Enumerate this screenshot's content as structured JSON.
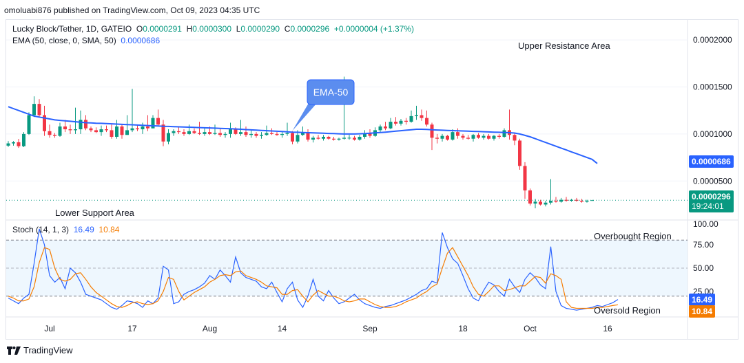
{
  "caption": "omoluabi876 published on TradingView.com, Oct 09, 2023 04:35 UTC",
  "legend": {
    "symbol": "Lucky Block/Tether, 1D, GATEIO",
    "o_label": "O",
    "o_val": "0.0000291",
    "h_label": "H",
    "h_val": "0.0000300",
    "l_label": "L",
    "l_val": "0.0000290",
    "c_label": "C",
    "c_val": "0.0000296",
    "change": "+0.0000004 (+1.37%)",
    "ema_label": "EMA (50, close, 0, SMA, 50)",
    "ema_val": "0.0000686"
  },
  "stoch_legend": {
    "label": "Stoch (14, 1, 3)",
    "k_val": "16.49",
    "d_val": "10.84"
  },
  "badges": {
    "ema": "0.0000686",
    "price": "0.0000296",
    "countdown": "19:24:01",
    "k": "16.49",
    "d": "10.84"
  },
  "footer": {
    "brand": "TradingView"
  },
  "colors": {
    "up": "#089981",
    "down": "#f23645",
    "ema": "#2962ff",
    "stoch_k": "#2962ff",
    "stoch_d": "#f57c00",
    "band": "#e3f2fd"
  },
  "chart_data": [
    {
      "type": "candlestick",
      "title": "Lucky Block/Tether, 1D, GATEIO",
      "y_ticks": [
        "0.0000500",
        "0.0001000",
        "0.0001500",
        "0.0002000"
      ],
      "y_tick_values": [
        5e-05,
        0.0001,
        0.00015,
        0.0002
      ],
      "ylim": [
        1e-05,
        0.000222
      ],
      "x_ticks": [
        "Jul",
        "17",
        "Aug",
        "14",
        "Sep",
        "18",
        "Oct",
        "16"
      ],
      "x_tick_days": [
        8,
        24,
        39,
        53,
        70,
        88,
        101,
        116
      ],
      "annotations": [
        "Upper Resistance Area",
        "Lower Support Area",
        "EMA-50"
      ],
      "ohlc": [
        [
          8.76e-05,
          9.24e-05,
          8.62e-05,
          9e-05
        ],
        [
          9e-05,
          9.24e-05,
          8.76e-05,
          9.12e-05
        ],
        [
          9.12e-05,
          9.48e-05,
          8.52e-05,
          8.7e-05
        ],
        [
          8.7e-05,
          0.000102,
          8.6e-05,
          0.0001
        ],
        [
          0.0001,
          0.000123,
          9.9e-05,
          0.00012
        ],
        [
          0.00012,
          0.00014,
          0.000118,
          0.000132
        ],
        [
          0.000132,
          0.000137,
          0.000118,
          0.00012
        ],
        [
          0.00012,
          0.00013,
          9.8e-05,
          0.000103
        ],
        [
          0.000103,
          0.00011,
          9.6e-05,
          9.9e-05
        ],
        [
          9.9e-05,
          0.000101,
          9.6e-05,
          9.8e-05
        ],
        [
          9.8e-05,
          0.000112,
          9.7e-05,
          0.000108
        ],
        [
          0.000108,
          0.000115,
          0.000102,
          0.000105
        ],
        [
          0.000105,
          0.00011,
          0.0001,
          0.000104
        ],
        [
          0.000104,
          0.000128,
          0.0001,
          0.000105
        ],
        [
          0.000105,
          0.000125,
          0.0001,
          0.000115
        ],
        [
          0.000115,
          0.00012,
          0.000104,
          0.000106
        ],
        [
          0.000106,
          0.000108,
          0.000102,
          0.000104
        ],
        [
          0.000104,
          0.000107,
          0.000101,
          0.000102
        ],
        [
          0.000102,
          0.000109,
          9.8e-05,
          0.000105
        ],
        [
          0.000105,
          0.000109,
          0.000102,
          0.000104
        ],
        [
          0.000104,
          0.00011,
          9.5e-05,
          9.7e-05
        ],
        [
          9.7e-05,
          0.000115,
          9.5e-05,
          0.000108
        ],
        [
          0.000108,
          0.00011,
          9.5e-05,
          9.9e-05
        ],
        [
          9.9e-05,
          0.00012,
          9.9e-05,
          0.000104
        ],
        [
          0.000104,
          0.000148,
          0.000102,
          0.000106
        ],
        [
          0.000106,
          0.00011,
          0.000103,
          0.000105
        ],
        [
          0.000105,
          0.000112,
          0.0001,
          0.000108
        ],
        [
          0.000108,
          0.00012,
          0.000103,
          0.000106
        ],
        [
          0.000106,
          0.00012,
          0.000106,
          0.000117
        ],
        [
          0.000117,
          0.000126,
          0.000108,
          0.00011
        ],
        [
          0.00011,
          0.000115,
          8.7e-05,
          9.2e-05
        ],
        [
          9.2e-05,
          0.000105,
          8.9e-05,
          0.000101
        ],
        [
          0.000101,
          0.000105,
          9.8e-05,
          0.000103
        ],
        [
          0.000103,
          0.000108,
          0.0001,
          0.000102
        ],
        [
          0.000102,
          0.000105,
          9.8e-05,
          0.0001
        ],
        [
          0.0001,
          0.00011,
          9.9e-05,
          0.000103
        ],
        [
          0.000103,
          0.000106,
          0.0001,
          0.000101
        ],
        [
          0.000101,
          0.000113,
          9.9e-05,
          0.0001
        ],
        [
          0.0001,
          0.000106,
          9.8e-05,
          0.000102
        ],
        [
          0.000102,
          0.000108,
          9.9e-05,
          0.0001
        ],
        [
          0.0001,
          0.00011,
          9.9e-05,
          0.000101
        ],
        [
          0.000101,
          0.000106,
          9.7e-05,
          9.9e-05
        ],
        [
          9.9e-05,
          0.000102,
          9.6e-05,
          0.0001
        ],
        [
          0.0001,
          0.000112,
          9.6e-05,
          0.000105
        ],
        [
          0.000105,
          0.000107,
          9.9e-05,
          0.0001
        ],
        [
          0.0001,
          0.000115,
          9.8e-05,
          0.000102
        ],
        [
          0.000102,
          0.000108,
          9.7e-05,
          9.9e-05
        ],
        [
          9.9e-05,
          0.000104,
          9.6e-05,
          0.0001
        ],
        [
          0.0001,
          0.000102,
          9.6e-05,
          9.8e-05
        ],
        [
          9.8e-05,
          0.000102,
          9.5e-05,
          9.9e-05
        ],
        [
          9.9e-05,
          0.000109,
          9.8e-05,
          0.000101
        ],
        [
          0.000101,
          0.000106,
          9.9e-05,
          0.0001
        ],
        [
          0.0001,
          0.000102,
          9.8e-05,
          9.9e-05
        ],
        [
          9.9e-05,
          0.000103,
          9.6e-05,
          0.0001
        ],
        [
          0.0001,
          0.000112,
          9.8e-05,
          0.000101
        ],
        [
          0.000101,
          0.000103,
          8.9e-05,
          9.2e-05
        ],
        [
          9.2e-05,
          0.000104,
          9e-05,
          9.9e-05
        ],
        [
          9.9e-05,
          0.000108,
          9.8e-05,
          0.000102
        ],
        [
          0.000102,
          0.000105,
          9.2e-05,
          9.4e-05
        ],
        [
          9.4e-05,
          9.8e-05,
          9.1e-05,
          9.6e-05
        ],
        [
          9.6e-05,
          9.9e-05,
          9.4e-05,
          9.5e-05
        ],
        [
          9.5e-05,
          9.9e-05,
          9.3e-05,
          9.7e-05
        ],
        [
          9.7e-05,
          9.8e-05,
          9.4e-05,
          9.5e-05
        ],
        [
          9.5e-05,
          9.7e-05,
          9.3e-05,
          9.4e-05
        ],
        [
          9.4e-05,
          9.6e-05,
          9.3e-05,
          9.5e-05
        ],
        [
          9.5e-05,
          0.000161,
          9.4e-05,
          9.6e-05
        ],
        [
          9.6e-05,
          9.9e-05,
          9.4e-05,
          9.6e-05
        ],
        [
          9.6e-05,
          9.8e-05,
          9.3e-05,
          9.4e-05
        ],
        [
          9.4e-05,
          9.9e-05,
          9.3e-05,
          9.7e-05
        ],
        [
          9.7e-05,
          0.000104,
          9.5e-05,
          0.000101
        ],
        [
          0.000101,
          0.000105,
          9.6e-05,
          9.8e-05
        ],
        [
          9.8e-05,
          0.000107,
          9.7e-05,
          0.000104
        ],
        [
          0.000104,
          0.00011,
          0.000102,
          0.000108
        ],
        [
          0.000108,
          0.000113,
          0.000104,
          0.000106
        ],
        [
          0.000106,
          0.000117,
          0.000105,
          0.000113
        ],
        [
          0.000113,
          0.000118,
          0.000109,
          0.000111
        ],
        [
          0.000111,
          0.000116,
          0.000109,
          0.000114
        ],
        [
          0.000114,
          0.000117,
          0.00011,
          0.000113
        ],
        [
          0.000113,
          0.000125,
          0.000112,
          0.000119
        ],
        [
          0.000119,
          0.00013,
          0.000115,
          0.00012
        ],
        [
          0.00012,
          0.000126,
          0.000114,
          0.000117
        ],
        [
          0.000117,
          0.000125,
          0.000108,
          0.00011
        ],
        [
          0.00011,
          0.000112,
          8.3e-05,
          9.6e-05
        ],
        [
          9.6e-05,
          0.0001,
          9e-05,
          9.5e-05
        ],
        [
          9.5e-05,
          0.0001,
          9.2e-05,
          9.8e-05
        ],
        [
          9.8e-05,
          9.9e-05,
          9.3e-05,
          9.4e-05
        ],
        [
          9.4e-05,
          0.000105,
          9.3e-05,
          0.000102
        ],
        [
          0.000102,
          0.000106,
          9.5e-05,
          9.8e-05
        ],
        [
          9.8e-05,
          0.0001,
          9.4e-05,
          9.6e-05
        ],
        [
          9.6e-05,
          9.9e-05,
          9.4e-05,
          9.5e-05
        ],
        [
          9.5e-05,
          0.0001,
          9.2e-05,
          9.9e-05
        ],
        [
          9.9e-05,
          0.000101,
          9.5e-05,
          9.6e-05
        ],
        [
          9.6e-05,
          0.0001,
          9.4e-05,
          9.8e-05
        ],
        [
          9.8e-05,
          0.0001,
          9.4e-05,
          9.5e-05
        ],
        [
          9.5e-05,
          9.9e-05,
          9.3e-05,
          9.8e-05
        ],
        [
          9.8e-05,
          0.0001,
          9.5e-05,
          9.7e-05
        ],
        [
          9.7e-05,
          0.000106,
          9.6e-05,
          0.000104
        ],
        [
          0.000104,
          0.000126,
          9.4e-05,
          9.9e-05
        ],
        [
          9.9e-05,
          0.000101,
          8.8e-05,
          9.3e-05
        ],
        [
          9.3e-05,
          9.5e-05,
          6.2e-05,
          6.6e-05
        ],
        [
          6.6e-05,
          7e-05,
          3.1e-05,
          4e-05
        ],
        [
          4e-05,
          4.2e-05,
          2.4e-05,
          2.6e-05
        ],
        [
          2.6e-05,
          3.1e-05,
          2.1e-05,
          2.8e-05
        ],
        [
          2.8e-05,
          3e-05,
          2.4e-05,
          2.5e-05
        ],
        [
          2.5e-05,
          2.9e-05,
          2.3e-05,
          2.7e-05
        ],
        [
          2.7e-05,
          5.2e-05,
          2.5e-05,
          2.9e-05
        ],
        [
          2.9e-05,
          3.3e-05,
          2.7e-05,
          2.8e-05
        ],
        [
          2.8e-05,
          3.2e-05,
          2.7e-05,
          3e-05
        ],
        [
          3e-05,
          3.3e-05,
          2.8e-05,
          2.9e-05
        ],
        [
          2.9e-05,
          3.1e-05,
          2.8e-05,
          3e-05
        ],
        [
          3e-05,
          3.2e-05,
          2.8e-05,
          2.9e-05
        ],
        [
          2.9e-05,
          3.1e-05,
          2.7e-05,
          2.8e-05
        ],
        [
          2.8e-05,
          3e-05,
          2.7e-05,
          2.9e-05
        ],
        [
          2.91e-05,
          3e-05,
          2.9e-05,
          2.96e-05
        ]
      ],
      "ema50": [
        0.000129,
        0.000127,
        0.000125,
        0.000123,
        0.000121,
        0.000119,
        0.000118,
        0.000117,
        0.000116,
        0.000115,
        0.0001145,
        0.000114,
        0.0001135,
        0.000113,
        0.0001125,
        0.000112,
        0.0001118,
        0.0001115,
        0.0001113,
        0.000111,
        0.0001108,
        0.0001105,
        0.0001102,
        0.00011,
        0.0001098,
        0.0001095,
        0.0001092,
        0.000109,
        0.0001087,
        0.0001085,
        0.0001082,
        0.000108,
        0.0001078,
        0.0001076,
        0.0001074,
        0.0001072,
        0.000107,
        0.0001068,
        0.0001066,
        0.0001064,
        0.0001062,
        0.000106,
        0.0001058,
        0.0001056,
        0.0001053,
        0.000105,
        0.0001047,
        0.0001044,
        0.0001041,
        0.0001038,
        0.0001035,
        0.0001032,
        0.0001029,
        0.0001026,
        0.0001023,
        0.000102,
        0.0001018,
        0.0001016,
        0.0001014,
        0.0001012,
        0.000101,
        0.0001008,
        0.0001006,
        0.0001004,
        0.0001002,
        0.0001,
        0.0001,
        0.0001,
        0.0001002,
        0.0001005,
        0.0001008,
        0.0001012,
        0.0001015,
        0.000102,
        0.0001025,
        0.000103,
        0.0001035,
        0.000104,
        0.0001045,
        0.000105,
        0.000105,
        0.0001048,
        0.0001045,
        0.0001042,
        0.000104,
        0.0001038,
        0.0001036,
        0.0001034,
        0.0001032,
        0.000103,
        0.0001028,
        0.0001026,
        0.0001024,
        0.0001022,
        0.000102,
        0.0001018,
        0.0001016,
        0.0001014,
        0.000101,
        0.0001,
        9.85e-05,
        9.7e-05,
        9.5e-05,
        9.3e-05,
        9.1e-05,
        8.9e-05,
        8.7e-05,
        8.5e-05,
        8.3e-05,
        8.1e-05,
        7.9e-05,
        7.7e-05,
        7.5e-05,
        7.3e-05,
        6.86e-05
      ]
    },
    {
      "type": "line",
      "title": "Stoch (14, 1, 3)",
      "y_ticks": [
        "25.00",
        "50.00",
        "75.00",
        "100.00"
      ],
      "y_tick_values": [
        25,
        50,
        75,
        100
      ],
      "ylim": [
        0,
        100
      ],
      "band": [
        20,
        80
      ],
      "annotations": [
        "Overbought Region",
        "Oversold Region"
      ],
      "series": [
        {
          "name": "%K",
          "values": [
            18,
            15,
            12,
            18,
            22,
            55,
            92,
            75,
            42,
            35,
            40,
            28,
            50,
            45,
            35,
            22,
            20,
            18,
            16,
            12,
            8,
            6,
            10,
            15,
            14,
            12,
            8,
            15,
            12,
            18,
            52,
            48,
            12,
            14,
            22,
            25,
            27,
            30,
            34,
            42,
            38,
            48,
            42,
            35,
            62,
            45,
            40,
            38,
            36,
            30,
            28,
            35,
            24,
            14,
            28,
            35,
            16,
            8,
            20,
            38,
            20,
            15,
            26,
            18,
            12,
            14,
            18,
            22,
            16,
            12,
            10,
            8,
            7,
            9,
            10,
            12,
            14,
            16,
            19,
            22,
            26,
            28,
            36,
            34,
            88,
            72,
            60,
            55,
            42,
            28,
            18,
            15,
            26,
            35,
            32,
            25,
            20,
            38,
            30,
            24,
            38,
            45,
            40,
            32,
            28,
            73,
            25,
            10,
            7,
            6,
            5,
            6,
            7,
            8,
            10,
            9,
            11,
            13,
            16.49
          ]
        },
        {
          "name": "%D",
          "values": [
            20,
            18,
            15,
            15,
            17,
            30,
            56,
            72,
            70,
            50,
            38,
            36,
            38,
            44,
            45,
            38,
            30,
            24,
            20,
            16,
            12,
            9,
            8,
            10,
            13,
            14,
            12,
            11,
            12,
            15,
            25,
            40,
            38,
            25,
            16,
            20,
            24,
            27,
            30,
            35,
            38,
            42,
            43,
            42,
            46,
            47,
            42,
            40,
            38,
            35,
            31,
            30,
            29,
            22,
            22,
            26,
            27,
            20,
            14,
            21,
            26,
            23,
            20,
            20,
            18,
            15,
            14,
            15,
            17,
            17,
            14,
            11,
            9,
            8,
            8,
            9,
            11,
            14,
            16,
            18,
            22,
            25,
            30,
            33,
            50,
            66,
            72,
            62,
            52,
            42,
            30,
            22,
            20,
            25,
            31,
            31,
            26,
            27,
            29,
            31,
            31,
            36,
            41,
            40,
            34,
            44,
            42,
            38,
            14,
            8,
            7,
            7,
            7,
            7,
            8,
            8,
            9,
            10,
            10.84
          ]
        }
      ]
    }
  ]
}
